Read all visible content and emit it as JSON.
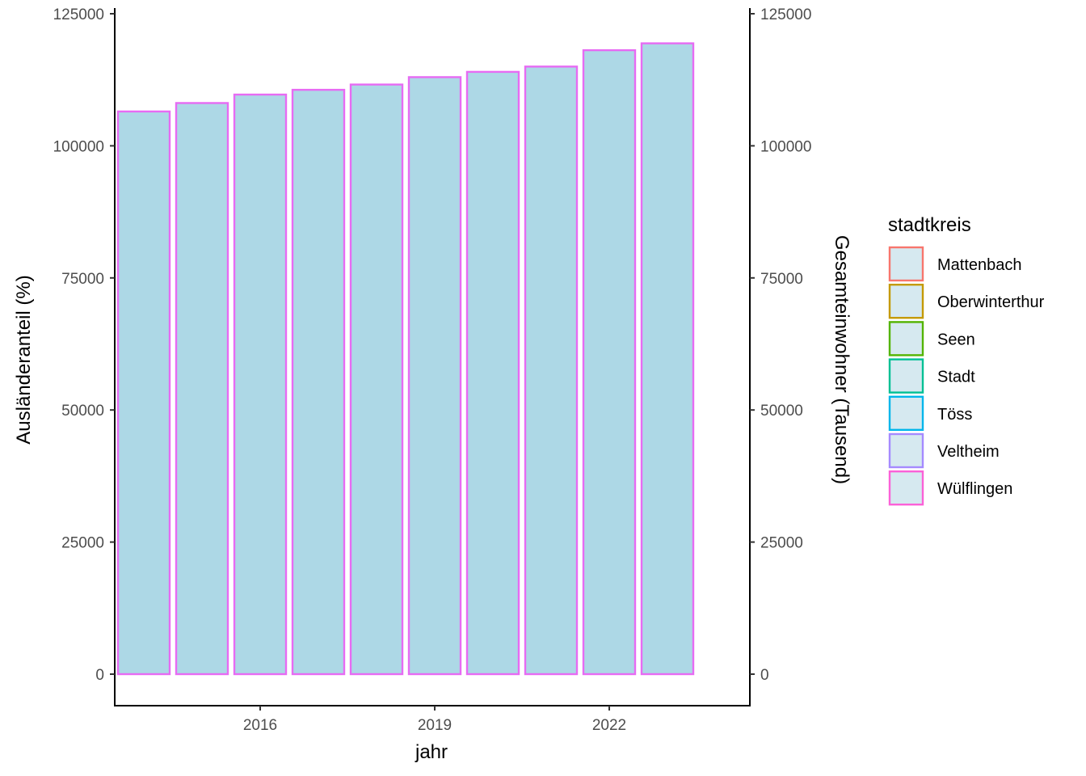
{
  "chart_data": {
    "type": "bar",
    "x": [
      2014,
      2015,
      2016,
      2017,
      2018,
      2019,
      2020,
      2021,
      2022,
      2023
    ],
    "values": [
      106500,
      108100,
      109700,
      110600,
      111600,
      113000,
      114000,
      115000,
      118100,
      119400
    ],
    "bar_fill": "#add8e6",
    "bar_stroke": "#e76bf3",
    "xlabel": "jahr",
    "ylabel": "Ausländeranteil (%)",
    "y2label": "Gesamteinwohner (Tausend)",
    "ylim": [
      0,
      125000
    ],
    "xlim": [
      2013,
      2024
    ],
    "yticks": [
      0,
      25000,
      50000,
      75000,
      100000,
      125000
    ],
    "ytick_labels": [
      "0",
      "25000",
      "50000",
      "75000",
      "100000",
      "125000"
    ],
    "xticks": [
      2016,
      2019,
      2022
    ],
    "xtick_labels": [
      "2016",
      "2019",
      "2022"
    ],
    "grid": false,
    "legend": {
      "title": "stadtkreis",
      "placement": "right",
      "key_fill": "#d6e9f0",
      "entries": [
        {
          "label": "Mattenbach",
          "color": "#f8766d"
        },
        {
          "label": "Oberwinterthur",
          "color": "#c49a00"
        },
        {
          "label": "Seen",
          "color": "#53b400"
        },
        {
          "label": "Stadt",
          "color": "#00c094"
        },
        {
          "label": "Töss",
          "color": "#00b6eb"
        },
        {
          "label": "Veltheim",
          "color": "#a58aff"
        },
        {
          "label": "Wülflingen",
          "color": "#fb61d7"
        }
      ]
    }
  }
}
